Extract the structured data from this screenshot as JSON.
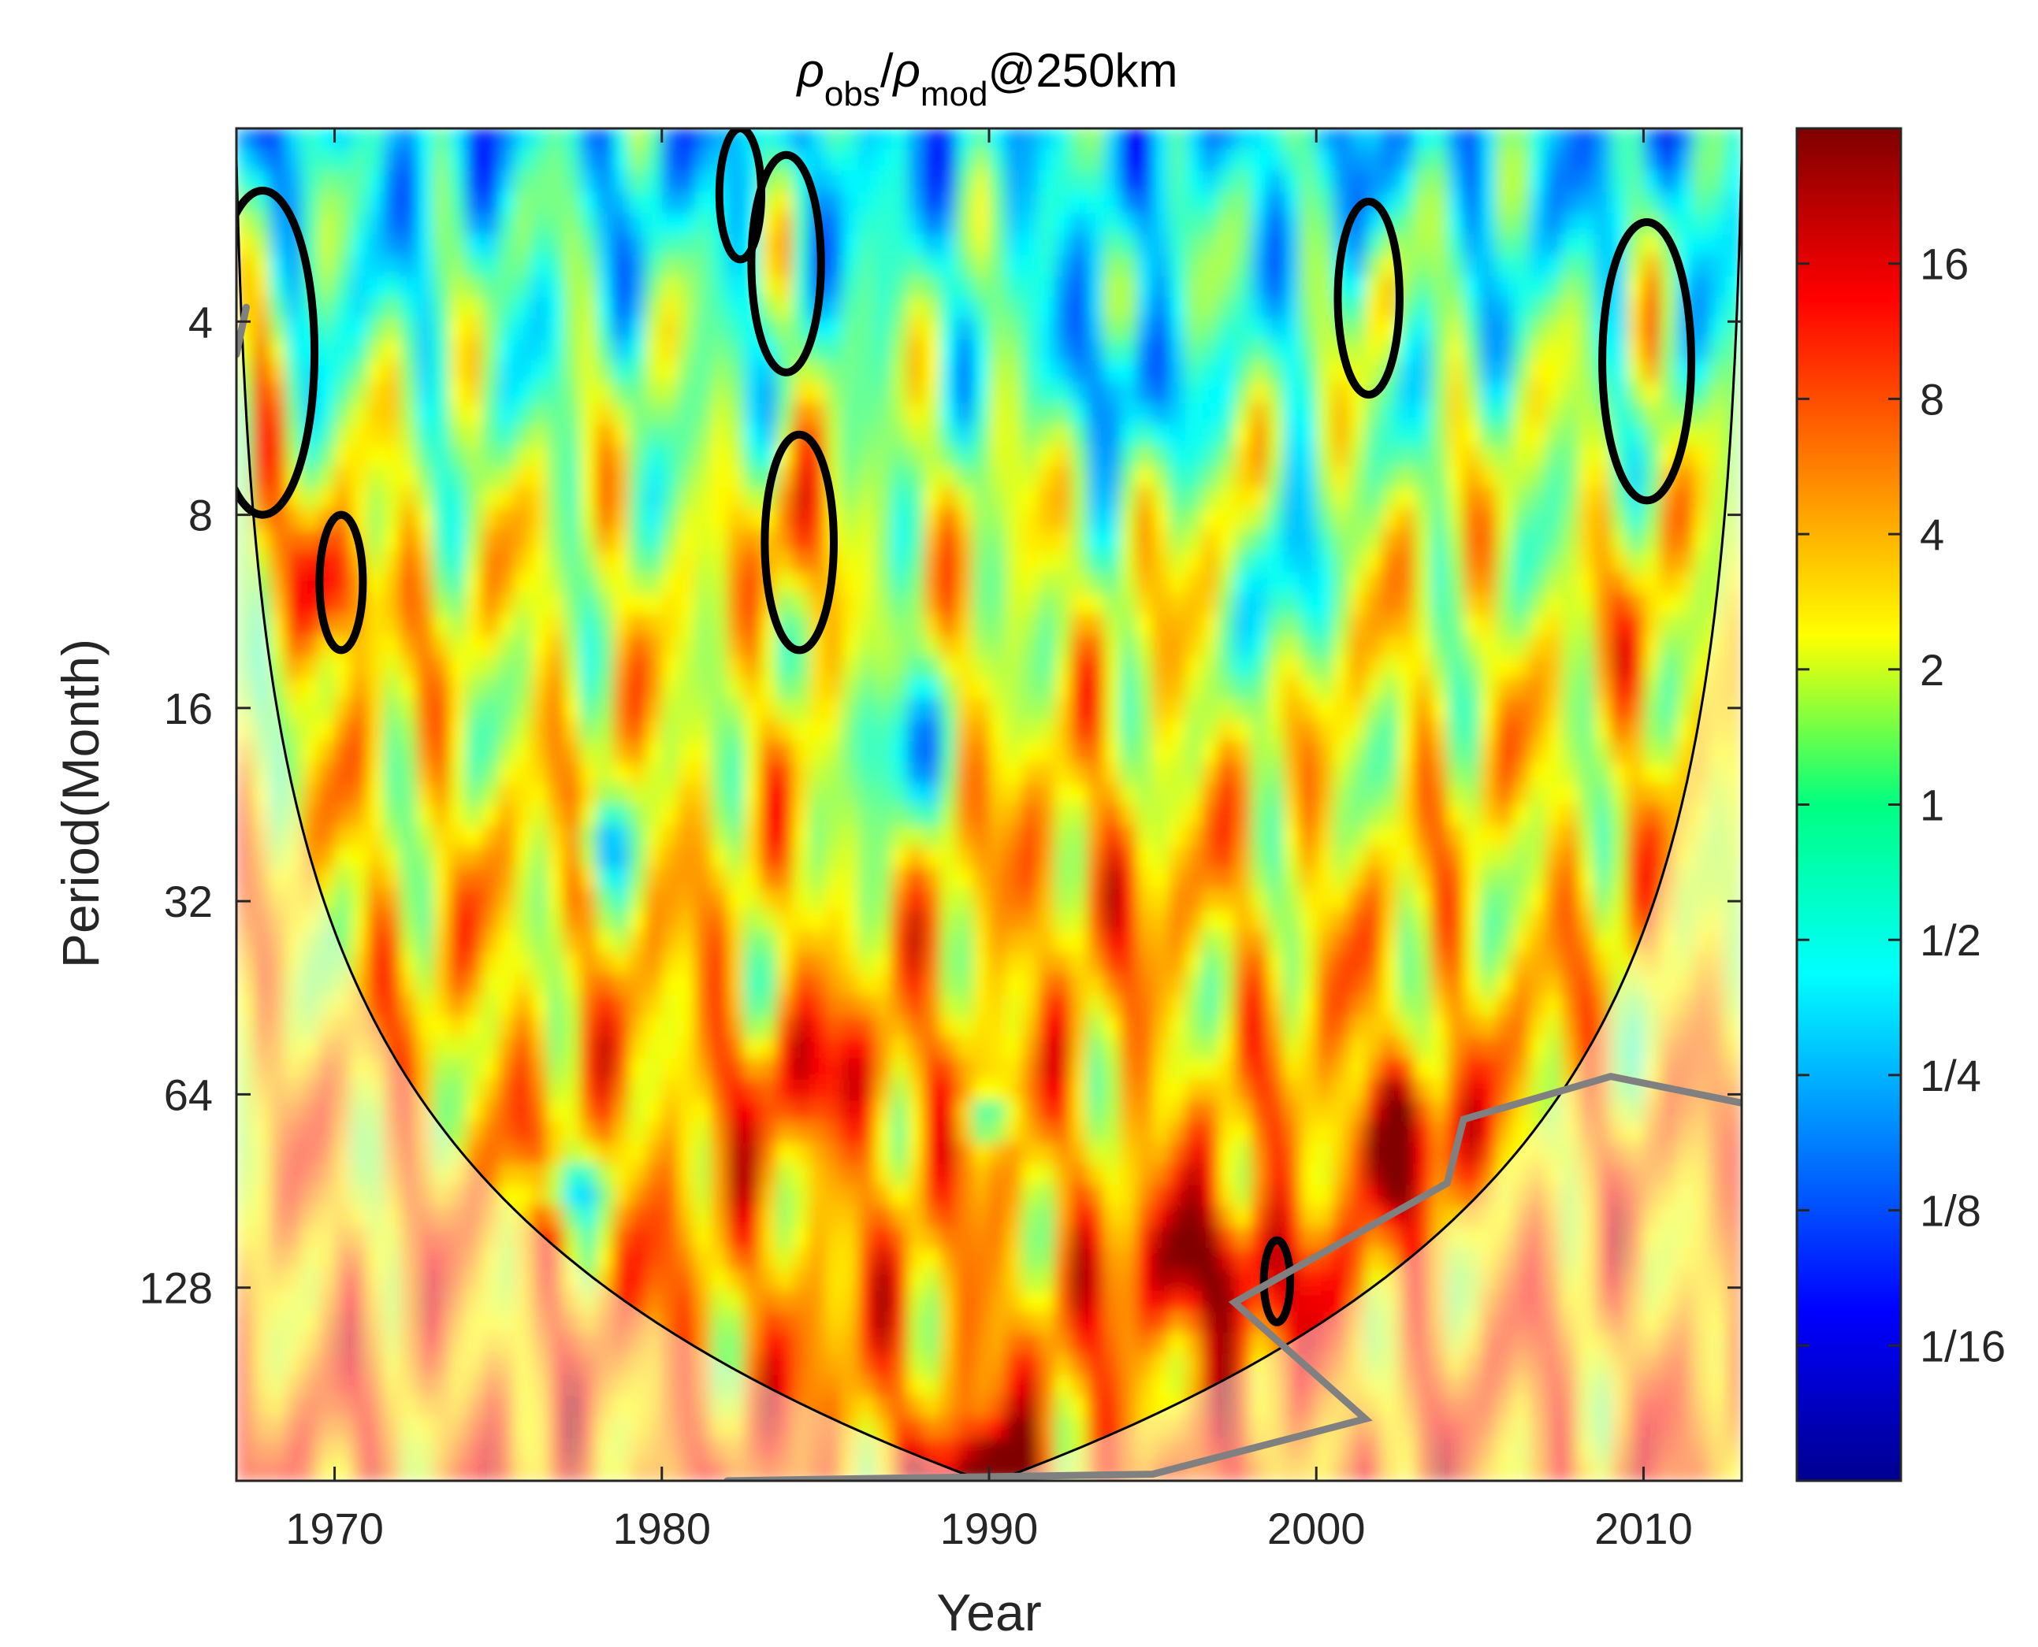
{
  "chart_data": {
    "type": "heatmap",
    "title": {
      "rho1": "ρ",
      "sub1": "obs",
      "slash": "/",
      "rho2": "ρ",
      "sub2": "mod",
      "suffix": "@250km"
    },
    "xlabel": "Year",
    "ylabel": "Period(Month)",
    "xlim": [
      1967,
      2013
    ],
    "ylim": [
      2,
      256
    ],
    "y_scale": "log2",
    "y_reversed": true,
    "x_ticks": [
      1970,
      1980,
      1990,
      2000,
      2010
    ],
    "x_tick_labels": [
      "1970",
      "1980",
      "1990",
      "2000",
      "2010"
    ],
    "y_ticks": [
      4,
      8,
      16,
      32,
      64,
      128
    ],
    "y_tick_labels": [
      "4",
      "8",
      "16",
      "32",
      "64",
      "128"
    ],
    "colorbar": {
      "colormap": "jet",
      "scale": "log2",
      "range": [
        0.03125,
        32
      ],
      "ticks": [
        16,
        8,
        4,
        2,
        1,
        0.5,
        0.25,
        0.125,
        0.0625
      ],
      "tick_labels": [
        "16",
        "8",
        "4",
        "2",
        "1",
        "1/2",
        "1/4",
        "1/8",
        "1/16"
      ]
    },
    "cone_of_influence": {
      "note_shaded_outside": true,
      "apex": [
        1990,
        256
      ]
    },
    "significance_contours": [
      {
        "center": [
          1967.8,
          5.0
        ],
        "approx_period_range": [
          2.5,
          8
        ]
      },
      {
        "center": [
          1970.2,
          10.5
        ],
        "approx_period_range": [
          8,
          13
        ]
      },
      {
        "center": [
          1984.2,
          9.0
        ],
        "approx_period_range": [
          6,
          13
        ]
      },
      {
        "center": [
          1982.4,
          2.6
        ],
        "approx_period_range": [
          2,
          3.2
        ]
      },
      {
        "center": [
          1983.8,
          3.4
        ],
        "approx_period_range": [
          2.2,
          4.8
        ]
      },
      {
        "center": [
          2001.6,
          3.4
        ],
        "approx_period_range": [
          2.6,
          5.2
        ]
      },
      {
        "center": [
          2010.1,
          4.6
        ],
        "approx_period_range": [
          2.8,
          7.6
        ]
      },
      {
        "center": [
          1998.8,
          128
        ],
        "approx_period_range": [
          108,
          145
        ]
      }
    ]
  }
}
